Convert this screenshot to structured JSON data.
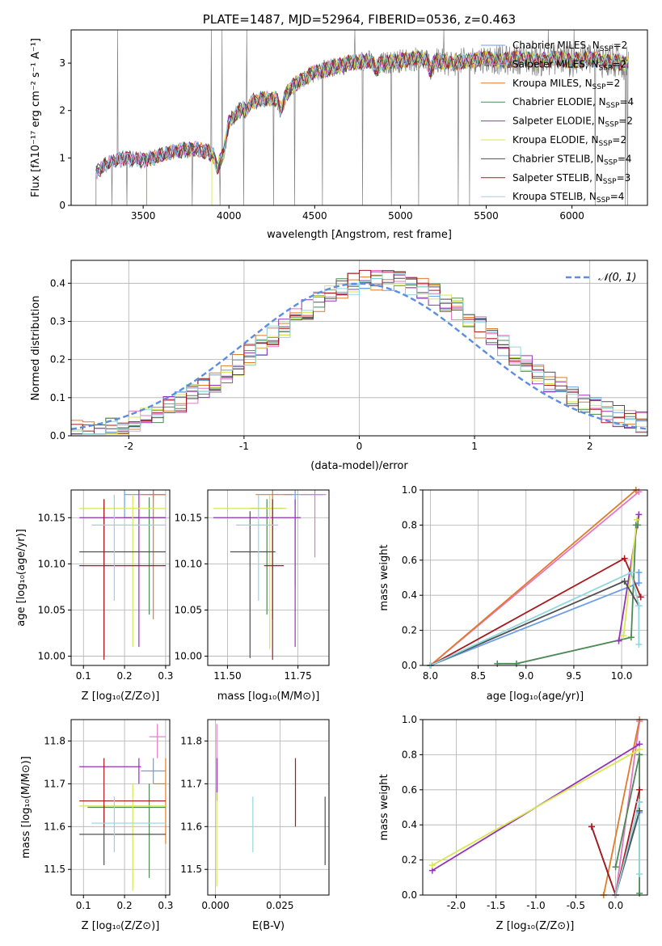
{
  "chart_data": [
    {
      "id": "spectrum",
      "type": "line",
      "title": "PLATE=1487, MJD=52964, FIBERID=0536, z=0.463",
      "xlabel": "wavelength [Angstrom, rest frame]",
      "ylabel": "Flux [fλ10⁻¹⁷ erg cm⁻² s⁻¹ A⁻¹]",
      "xlim": [
        3080,
        6440
      ],
      "ylim": [
        0,
        3.7
      ],
      "xticks": [
        3500,
        4000,
        4500,
        5000,
        5500,
        6000
      ],
      "yticks": [
        0,
        1,
        2,
        3
      ],
      "grid": false,
      "legend_position": "top-right",
      "continuum_model": {
        "x": [
          3220,
          3300,
          3400,
          3500,
          3600,
          3700,
          3800,
          3900,
          3950,
          4000,
          4100,
          4200,
          4300,
          4400,
          4500,
          4600,
          4700,
          4800,
          4900,
          5000,
          5100,
          5200,
          5300,
          5400,
          5500,
          5600,
          5700,
          5800,
          5900,
          6000,
          6100,
          6200,
          6300
        ],
        "y": [
          0.7,
          0.9,
          1.0,
          0.95,
          1.05,
          1.15,
          1.2,
          1.1,
          1.2,
          1.75,
          2.15,
          2.25,
          2.25,
          2.6,
          2.8,
          2.9,
          3.0,
          3.05,
          3.0,
          3.05,
          3.1,
          3.05,
          3.0,
          3.05,
          3.1,
          3.05,
          3.1,
          3.05,
          3.1,
          3.05,
          3.1,
          3.05,
          3.0
        ]
      },
      "series": [
        {
          "name": "Chabrier MILES, N_SSP=2",
          "color": "#6b9ee8"
        },
        {
          "name": "Salpeter MILES, N_SSP=2",
          "color": "#e377c2"
        },
        {
          "name": "Kroupa MILES, N_SSP=2",
          "color": "#e07b2a"
        },
        {
          "name": "Chabrier ELODIE, N_SSP=4",
          "color": "#4c8a56"
        },
        {
          "name": "Salpeter ELODIE, N_SSP=2",
          "color": "#9632b8"
        },
        {
          "name": "Kroupa ELODIE, N_SSP=2",
          "color": "#d7e84e"
        },
        {
          "name": "Chabrier STELIB, N_SSP=4",
          "color": "#505050"
        },
        {
          "name": "Salpeter STELIB, N_SSP=3",
          "color": "#a8191e"
        },
        {
          "name": "Kroupa STELIB, N_SSP=4",
          "color": "#8fd8de"
        }
      ],
      "data_color": "#808080"
    },
    {
      "id": "residuals",
      "type": "line",
      "xlabel": "(data-model)/error",
      "ylabel": "Normed distribution",
      "xlim": [
        -2.5,
        2.5
      ],
      "ylim": [
        0,
        0.46
      ],
      "xticks": [
        -2,
        -1,
        0,
        1,
        2
      ],
      "yticks": [
        0.0,
        0.1,
        0.2,
        0.3,
        0.4
      ],
      "grid": true,
      "legend": "𝒩(0, 1)",
      "legend_position": "top-right",
      "bin_width": 0.1,
      "gaussian": {
        "mean": 0,
        "sigma": 1,
        "color": "#5b8de0"
      }
    },
    {
      "id": "age-vs-Z",
      "type": "scatter",
      "xlabel": "Z [log₁₀(Z/Z⊙)]",
      "ylabel": "age  [log₁₀(age/yr)]",
      "xlim": [
        0.07,
        0.31
      ],
      "ylim": [
        9.99,
        10.18
      ],
      "xticks": [
        0.1,
        0.2,
        0.3
      ],
      "yticks": [
        10.0,
        10.05,
        10.1,
        10.15
      ],
      "grid": true,
      "points": [
        {
          "series": 0,
          "x": 0.2,
          "y": 10.175,
          "xerr": [
            0.2,
            0.3
          ],
          "yerr": [
            10.15,
            10.18
          ]
        },
        {
          "series": 1,
          "x": 0.27,
          "y": 10.175,
          "xerr": [
            0.26,
            0.3
          ],
          "yerr": [
            10.17,
            10.18
          ]
        },
        {
          "series": 2,
          "x": 0.27,
          "y": 10.175,
          "xerr": [
            0.24,
            0.3
          ],
          "yerr": [
            10.04,
            10.18
          ]
        },
        {
          "series": 3,
          "x": 0.26,
          "y": 10.15,
          "xerr": [
            0.2,
            0.3
          ],
          "yerr": [
            10.045,
            10.172
          ]
        },
        {
          "series": 4,
          "x": 0.235,
          "y": 10.15,
          "xerr": [
            0.09,
            0.3
          ],
          "yerr": [
            10.01,
            10.18
          ]
        },
        {
          "series": 5,
          "x": 0.22,
          "y": 10.16,
          "xerr": [
            0.09,
            0.3
          ],
          "yerr": [
            10.01,
            10.175
          ]
        },
        {
          "series": 6,
          "x": 0.15,
          "y": 10.113,
          "xerr": [
            0.09,
            0.3
          ],
          "yerr": [
            10.0,
            10.17
          ]
        },
        {
          "series": 7,
          "x": 0.15,
          "y": 10.098,
          "xerr": [
            0.09,
            0.3
          ],
          "yerr": [
            9.996,
            10.17
          ]
        },
        {
          "series": 8,
          "x": 0.175,
          "y": 10.142,
          "xerr": [
            0.12,
            0.3
          ],
          "yerr": [
            10.06,
            10.175
          ]
        }
      ]
    },
    {
      "id": "age-vs-mass",
      "type": "scatter",
      "xlabel": "mass [log₁₀(M/M⊙)]",
      "ylabel": "",
      "xlim": [
        11.43,
        11.86
      ],
      "ylim": [
        9.99,
        10.18
      ],
      "xticks": [
        11.5,
        11.75
      ],
      "yticks": [
        10.0,
        10.05,
        10.1,
        10.15
      ],
      "grid": true,
      "points": [
        {
          "series": 0,
          "x": 11.74,
          "y": 10.175,
          "xerr": [
            11.7,
            11.84
          ],
          "yerr": [
            10.076,
            10.18
          ]
        },
        {
          "series": 1,
          "x": 11.81,
          "y": 10.175,
          "xerr": [
            11.76,
            11.85
          ],
          "yerr": [
            10.107,
            10.18
          ]
        },
        {
          "series": 2,
          "x": 11.66,
          "y": 10.175,
          "xerr": [
            11.6,
            11.73
          ],
          "yerr": [
            10.04,
            10.18
          ]
        },
        {
          "series": 3,
          "x": 11.64,
          "y": 10.16,
          "xerr": [
            11.58,
            11.7
          ],
          "yerr": [
            10.045,
            10.17
          ]
        },
        {
          "series": 4,
          "x": 11.74,
          "y": 10.15,
          "xerr": [
            11.45,
            11.76
          ],
          "yerr": [
            10.01,
            10.17
          ]
        },
        {
          "series": 5,
          "x": 11.65,
          "y": 10.16,
          "xerr": [
            11.45,
            11.71
          ],
          "yerr": [
            10.008,
            10.175
          ]
        },
        {
          "series": 6,
          "x": 11.58,
          "y": 10.113,
          "xerr": [
            11.51,
            11.67
          ],
          "yerr": [
            9.998,
            10.157
          ]
        },
        {
          "series": 7,
          "x": 11.66,
          "y": 10.098,
          "xerr": [
            11.63,
            11.7
          ],
          "yerr": [
            9.996,
            10.17
          ]
        },
        {
          "series": 8,
          "x": 11.61,
          "y": 10.142,
          "xerr": [
            11.53,
            11.68
          ],
          "yerr": [
            10.06,
            10.175
          ]
        }
      ]
    },
    {
      "id": "mass-weight-vs-age",
      "type": "line",
      "xlabel": "age  [log₁₀(age/yr)]",
      "ylabel": "mass weight",
      "xlim": [
        7.92,
        10.27
      ],
      "ylim": [
        0,
        1
      ],
      "xticks": [
        8.0,
        8.5,
        9.0,
        9.5,
        10.0
      ],
      "yticks": [
        0.0,
        0.2,
        0.4,
        0.6,
        0.8,
        1.0
      ],
      "grid": true,
      "series": [
        {
          "series": 0,
          "x": [
            8.0,
            10.18,
            10.18
          ],
          "y": [
            0.0,
            0.47,
            0.53
          ]
        },
        {
          "series": 1,
          "x": [
            8.0,
            10.18
          ],
          "y": [
            0.0,
            0.99
          ]
        },
        {
          "series": 2,
          "x": [
            8.0,
            10.15
          ],
          "y": [
            0.0,
            1.0
          ]
        },
        {
          "series": 3,
          "x": [
            8.7,
            8.9,
            10.1,
            10.15,
            10.17
          ],
          "y": [
            0.01,
            0.01,
            0.16,
            0.8,
            0.8
          ]
        },
        {
          "series": 4,
          "x": [
            9.97,
            10.18
          ],
          "y": [
            0.14,
            0.86
          ]
        },
        {
          "series": 5,
          "x": [
            10.02,
            10.16
          ],
          "y": [
            0.17,
            0.83
          ]
        },
        {
          "series": 6,
          "x": [
            8.0,
            10.03,
            10.18
          ],
          "y": [
            0.0,
            0.48,
            0.34
          ]
        },
        {
          "series": 7,
          "x": [
            8.0,
            10.03,
            10.2
          ],
          "y": [
            0.0,
            0.61,
            0.39
          ]
        },
        {
          "series": 8,
          "x": [
            8.0,
            10.1,
            10.18,
            10.18
          ],
          "y": [
            0.0,
            0.53,
            0.34,
            0.12
          ]
        }
      ]
    },
    {
      "id": "mass-vs-Z",
      "type": "scatter",
      "xlabel": "Z [log₁₀(Z/Z⊙)]",
      "ylabel": "mass [log₁₀(M/M⊙)]",
      "xlim": [
        0.07,
        0.31
      ],
      "ylim": [
        11.44,
        11.85
      ],
      "xticks": [
        0.1,
        0.2,
        0.3
      ],
      "yticks": [
        11.5,
        11.6,
        11.7,
        11.8
      ],
      "grid": true,
      "points": [
        {
          "series": 0,
          "x": 0.27,
          "y": 11.73,
          "xerr": [
            0.24,
            0.3
          ],
          "yerr": [
            11.7,
            11.76
          ]
        },
        {
          "series": 1,
          "x": 0.28,
          "y": 11.81,
          "xerr": [
            0.26,
            0.3
          ],
          "yerr": [
            11.76,
            11.84
          ]
        },
        {
          "series": 2,
          "x": 0.3,
          "y": 11.7,
          "xerr": [
            0.27,
            0.3
          ],
          "yerr": [
            11.56,
            11.76
          ]
        },
        {
          "series": 3,
          "x": 0.26,
          "y": 11.645,
          "xerr": [
            0.11,
            0.3
          ],
          "yerr": [
            11.48,
            11.7
          ]
        },
        {
          "series": 4,
          "x": 0.235,
          "y": 11.74,
          "xerr": [
            0.09,
            0.24
          ],
          "yerr": [
            11.7,
            11.76
          ]
        },
        {
          "series": 5,
          "x": 0.22,
          "y": 11.648,
          "xerr": [
            0.09,
            0.3
          ],
          "yerr": [
            11.45,
            11.7
          ]
        },
        {
          "series": 6,
          "x": 0.15,
          "y": 11.582,
          "xerr": [
            0.09,
            0.3
          ],
          "yerr": [
            11.51,
            11.65
          ]
        },
        {
          "series": 7,
          "x": 0.15,
          "y": 11.66,
          "xerr": [
            0.09,
            0.3
          ],
          "yerr": [
            11.6,
            11.76
          ]
        },
        {
          "series": 8,
          "x": 0.175,
          "y": 11.608,
          "xerr": [
            0.12,
            0.3
          ],
          "yerr": [
            11.54,
            11.67
          ]
        }
      ]
    },
    {
      "id": "mass-vs-ebv",
      "type": "scatter",
      "xlabel": "E(B-V)",
      "ylabel": "",
      "xlim": [
        -0.003,
        0.044
      ],
      "ylim": [
        11.44,
        11.85
      ],
      "xticks": [
        0.0,
        0.025
      ],
      "xticklabels": [
        "0.000",
        "0.025"
      ],
      "yticks": [
        11.5,
        11.6,
        11.7,
        11.8
      ],
      "grid": true,
      "points": [
        {
          "series": 0,
          "x": 0.0005,
          "y": 11.73,
          "xerr": [
            0.0005,
            0.0005
          ],
          "yerr": [
            11.66,
            11.76
          ]
        },
        {
          "series": 1,
          "x": 0.0005,
          "y": 11.81,
          "xerr": [
            0.0005,
            0.0005
          ],
          "yerr": [
            11.76,
            11.84
          ]
        },
        {
          "series": 4,
          "x": 0.0006,
          "y": 11.74,
          "xerr": [
            0.0006,
            0.0006
          ],
          "yerr": [
            11.66,
            11.76
          ]
        },
        {
          "series": 5,
          "x": 0.0005,
          "y": 11.6,
          "xerr": [
            0.0005,
            0.0005
          ],
          "yerr": [
            11.46,
            11.68
          ]
        },
        {
          "series": 8,
          "x": 0.0145,
          "y": 11.608,
          "xerr": [
            0.0145,
            0.0145
          ],
          "yerr": [
            11.54,
            11.67
          ]
        },
        {
          "series": 7,
          "x": 0.031,
          "y": 11.66,
          "xerr": [
            0.031,
            0.031
          ],
          "yerr": [
            11.6,
            11.76
          ]
        },
        {
          "series": 6,
          "x": 0.0425,
          "y": 11.582,
          "xerr": [
            0.0425,
            0.0425
          ],
          "yerr": [
            11.51,
            11.67
          ]
        }
      ]
    },
    {
      "id": "mass-weight-vs-Z",
      "type": "line",
      "xlabel": "Z [log₁₀(Z/Z⊙)]",
      "ylabel": "mass weight",
      "xlim": [
        -2.42,
        0.4
      ],
      "ylim": [
        0,
        1
      ],
      "xticks": [
        -2.0,
        -1.5,
        -1.0,
        -0.5,
        0.0
      ],
      "yticks": [
        0.0,
        0.2,
        0.4,
        0.6,
        0.8,
        1.0
      ],
      "grid": true,
      "series": [
        {
          "series": 0,
          "x": [
            0.0,
            0.3,
            0.3
          ],
          "y": [
            0.0,
            0.47,
            0.53
          ]
        },
        {
          "series": 1,
          "x": [
            0.0,
            0.3
          ],
          "y": [
            0.0,
            0.99
          ]
        },
        {
          "series": 2,
          "x": [
            -0.15,
            0.3
          ],
          "y": [
            0.0,
            1.0
          ]
        },
        {
          "series": 3,
          "x": [
            0.0,
            0.3,
            0.3,
            0.3
          ],
          "y": [
            0.16,
            0.8,
            0.01,
            0.8
          ]
        },
        {
          "series": 4,
          "x": [
            -2.3,
            0.3
          ],
          "y": [
            0.14,
            0.86
          ]
        },
        {
          "series": 5,
          "x": [
            -2.3,
            0.3
          ],
          "y": [
            0.17,
            0.83
          ]
        },
        {
          "series": 6,
          "x": [
            -0.3,
            0.0,
            0.3
          ],
          "y": [
            0.39,
            0.0,
            0.48
          ]
        },
        {
          "series": 7,
          "x": [
            -0.3,
            0.0,
            0.3
          ],
          "y": [
            0.39,
            0.0,
            0.6
          ]
        },
        {
          "series": 8,
          "x": [
            0.0,
            0.3,
            0.3
          ],
          "y": [
            0.0,
            0.53,
            0.12
          ]
        }
      ]
    }
  ]
}
